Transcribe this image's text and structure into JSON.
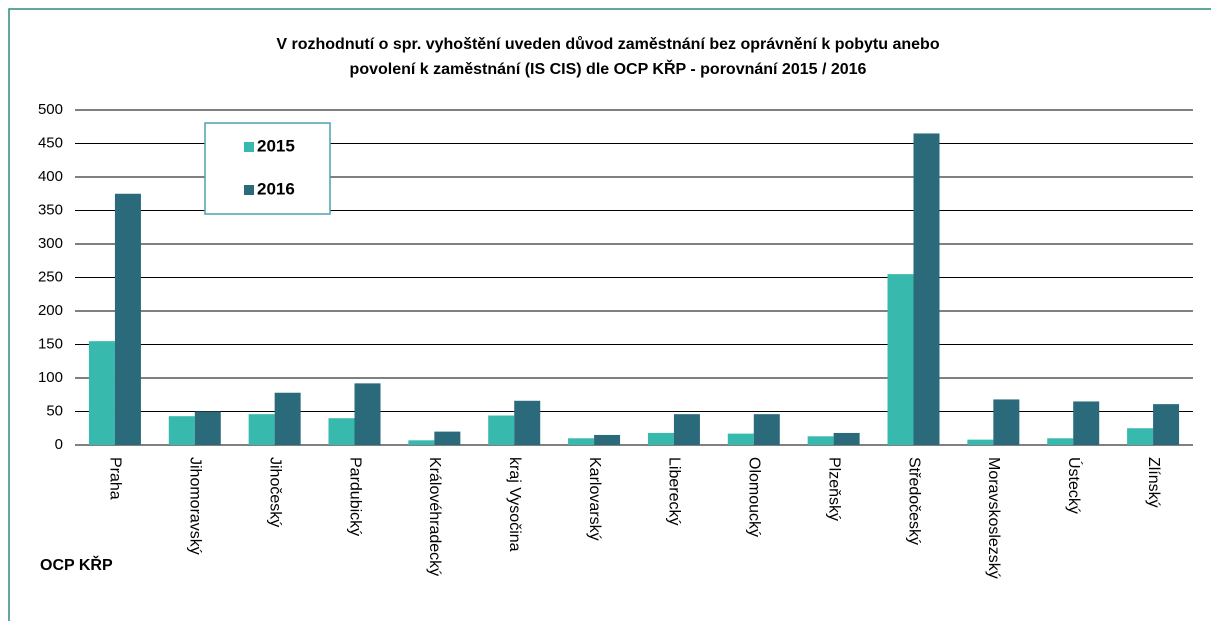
{
  "chart_data": {
    "type": "bar",
    "title": [
      "V rozhodnutí o spr. vyhoštění uveden důvod zaměstnání bez oprávnění k pobytu anebo",
      "povolení k zaměstnání (IS CIS) dle OCP KŘP - porovnání 2015 / 2016"
    ],
    "x_label": "OCP KŘP",
    "categories": [
      "Praha",
      "Jihomoravský",
      "Jihočeský",
      "Pardubický",
      "Královéhradecký",
      "kraj Vysočina",
      "Karlovarský",
      "Liberecký",
      "Olomoucký",
      "Plzeňský",
      "Středočeský",
      "Moravskoslezský",
      "Ústecký",
      "Zlínský"
    ],
    "series": [
      {
        "name": "2015",
        "color": "#38b9ad",
        "values": [
          155,
          43,
          46,
          40,
          7,
          44,
          10,
          18,
          17,
          13,
          255,
          8,
          10,
          25
        ]
      },
      {
        "name": "2016",
        "color": "#2a6a7b",
        "values": [
          375,
          50,
          78,
          92,
          20,
          66,
          15,
          46,
          46,
          18,
          465,
          68,
          65,
          61
        ]
      }
    ],
    "ylim": [
      0,
      500
    ],
    "yticks": [
      0,
      50,
      100,
      150,
      200,
      250,
      300,
      350,
      400,
      450,
      500
    ],
    "grid": true
  }
}
